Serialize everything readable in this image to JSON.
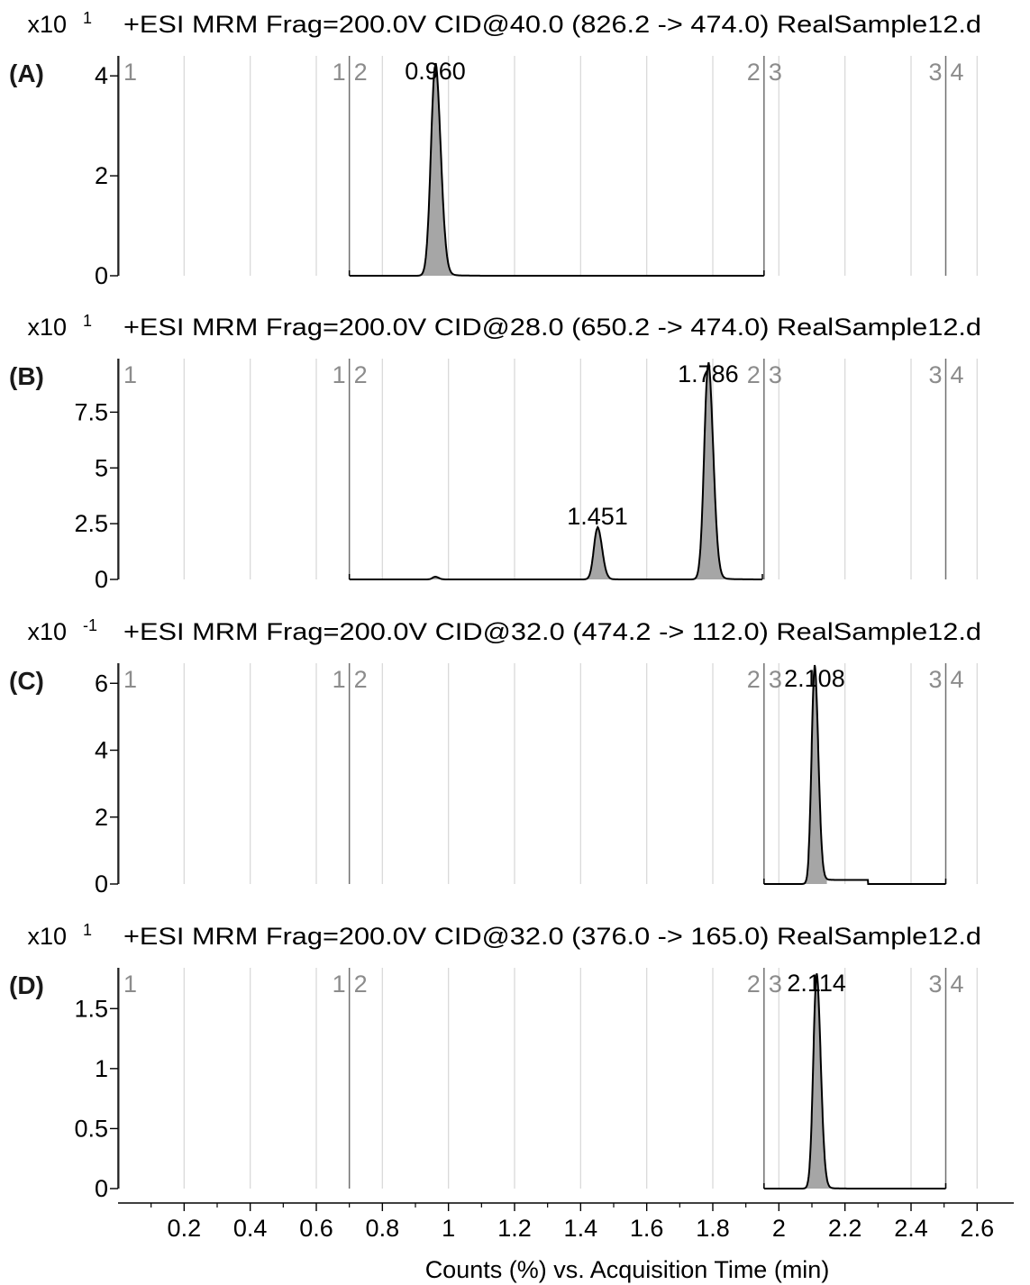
{
  "chart_data": {
    "type": "line",
    "xlabel": "Counts (%) vs. Acquisition Time (min)",
    "xlim": [
      0.0,
      2.67
    ],
    "x_ticks": [
      0.2,
      0.4,
      0.6,
      0.8,
      1,
      1.2,
      1.4,
      1.6,
      1.8,
      2,
      2.2,
      2.4,
      2.6
    ],
    "x_tick_labels": [
      "0.2",
      "0.4",
      "0.6",
      "0.8",
      "1",
      "1.2",
      "1.4",
      "1.6",
      "1.8",
      "2",
      "2.2",
      "2.4",
      "2.6"
    ],
    "grid": true,
    "segment_markers": [
      {
        "x": 0.0,
        "labels": [
          "",
          "1"
        ]
      },
      {
        "x": 0.7,
        "labels": [
          "1",
          "2"
        ]
      },
      {
        "x": 1.955,
        "labels": [
          "2",
          "3"
        ]
      },
      {
        "x": 2.505,
        "labels": [
          "3",
          "4"
        ]
      }
    ],
    "panels": [
      {
        "label": "(A)",
        "multiplier_base": "x10",
        "multiplier_exp": "1",
        "title": "+ESI MRM Frag=200.0V CID@40.0 (826.2 -> 474.0) RealSample12.d",
        "ylim": [
          0,
          4.4
        ],
        "y_ticks": [
          0,
          2,
          4
        ],
        "y_tick_labels": [
          "0",
          "2",
          "4"
        ],
        "trace_x_range": [
          0.7,
          1.955
        ],
        "peaks": [
          {
            "x": 0.96,
            "label": "0.960",
            "height": 4.2,
            "width": 0.013,
            "tail": 0.03
          }
        ]
      },
      {
        "label": "(B)",
        "multiplier_base": "x10",
        "multiplier_exp": "1",
        "title": "+ESI MRM Frag=200.0V CID@28.0 (650.2 -> 474.0) RealSample12.d",
        "ylim": [
          0,
          9.9
        ],
        "y_ticks": [
          0,
          2.5,
          5,
          7.5
        ],
        "y_tick_labels": [
          "0",
          "2.5",
          "5",
          "7.5"
        ],
        "trace_x_range": [
          0.7,
          1.95
        ],
        "peaks": [
          {
            "x": 0.96,
            "label": "",
            "height": 0.12,
            "width": 0.008,
            "tail": 0.01
          },
          {
            "x": 1.451,
            "label": "1.451",
            "height": 2.3,
            "width": 0.011,
            "tail": 0.02
          },
          {
            "x": 1.786,
            "label": "1.786",
            "height": 9.6,
            "width": 0.012,
            "tail": 0.03
          }
        ]
      },
      {
        "label": "(C)",
        "multiplier_base": "x10",
        "multiplier_exp": "-1",
        "title": "+ESI MRM Frag=200.0V CID@32.0 (474.2 -> 112.0) RealSample12.d",
        "ylim": [
          0,
          6.6
        ],
        "y_ticks": [
          0,
          2,
          4,
          6
        ],
        "y_tick_labels": [
          "0",
          "2",
          "4",
          "6"
        ],
        "trace_x_range": [
          1.955,
          2.505
        ],
        "baseline_bump": {
          "x1": 2.09,
          "x2": 2.27,
          "height": 0.12
        },
        "peaks": [
          {
            "x": 2.108,
            "label": "2.108",
            "height": 6.3,
            "width": 0.009,
            "tail": 0.015
          }
        ]
      },
      {
        "label": "(D)",
        "multiplier_base": "x10",
        "multiplier_exp": "1",
        "title": "+ESI MRM Frag=200.0V CID@32.0 (376.0 -> 165.0) RealSample12.d",
        "ylim": [
          0,
          1.84
        ],
        "y_ticks": [
          0,
          0.5,
          1,
          1.5
        ],
        "y_tick_labels": [
          "0",
          "0.5",
          "1",
          "1.5"
        ],
        "trace_x_range": [
          1.955,
          2.505
        ],
        "peaks": [
          {
            "x": 2.114,
            "label": "2.114",
            "height": 1.76,
            "width": 0.01,
            "tail": 0.02
          }
        ]
      }
    ]
  },
  "colors": {
    "background": "#ffffff",
    "grid": "#d9d9d9",
    "axis": "#000000",
    "trace": "#000000",
    "peak_fill": "#a6a6a6",
    "segment_line": "#707070",
    "segment_label": "#8c8c8c",
    "panel_label": "#1a1a1a"
  }
}
